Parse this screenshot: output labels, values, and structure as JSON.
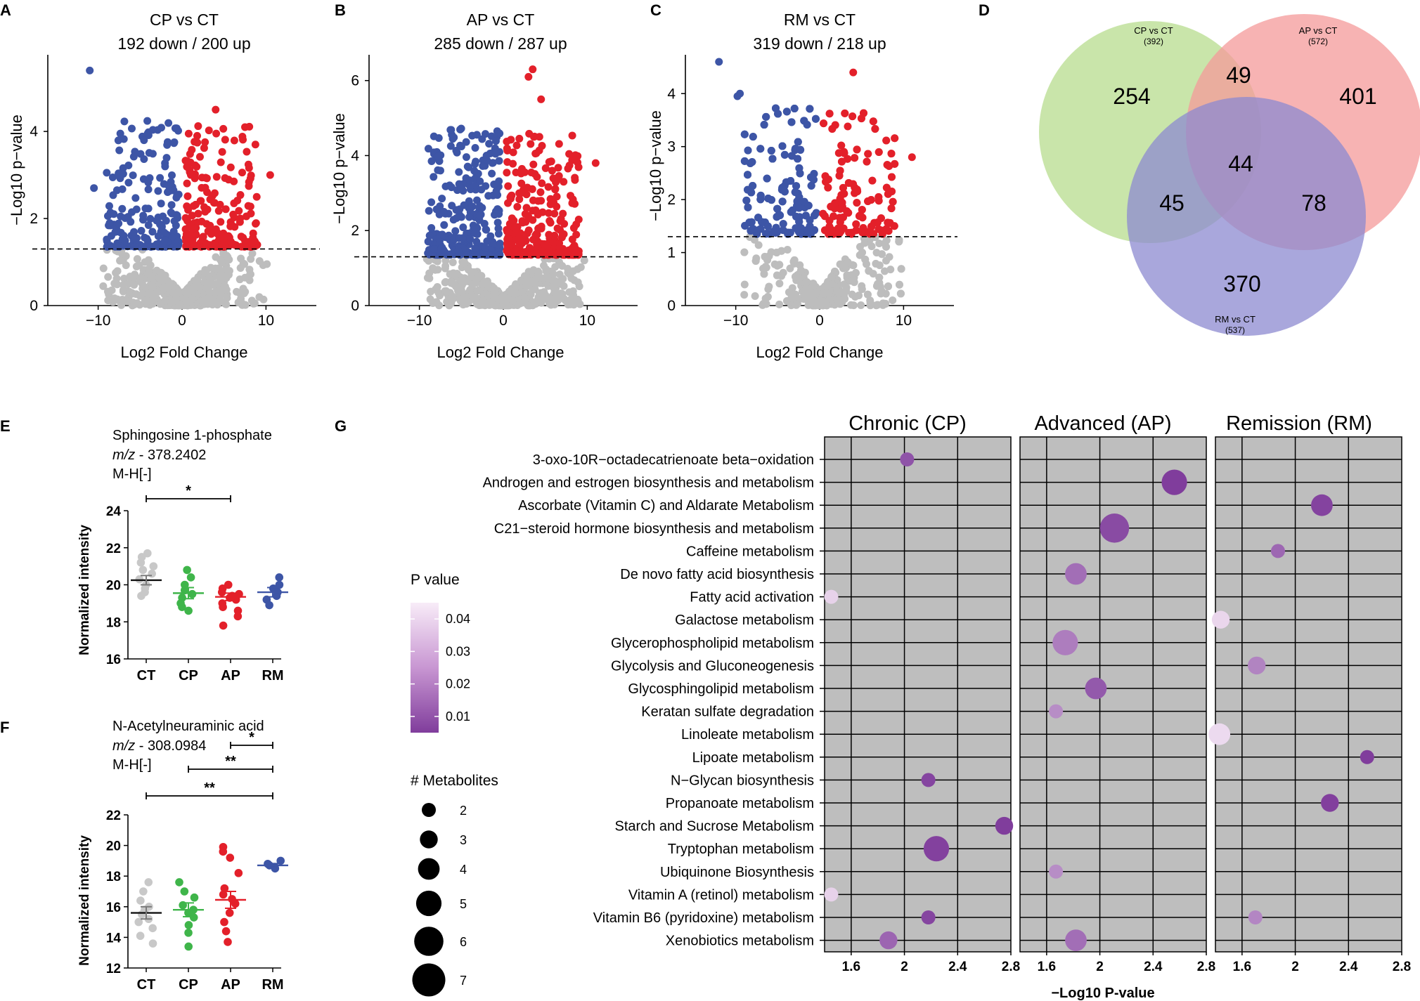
{
  "panel_letters": {
    "A": "A",
    "B": "B",
    "C": "C",
    "D": "D",
    "E": "E",
    "F": "F",
    "G": "G"
  },
  "colors": {
    "down": "#3d55a6",
    "up": "#e3202a",
    "ns": "#bdbdbd",
    "ct": "#c8c8c8",
    "cp": "#3fb54a",
    "ap": "#e3202a",
    "rm": "#3d55a6",
    "grid_bg": "#bebebe",
    "venn_cp": "#b7dc8e",
    "venn_ap": "#f49a9a",
    "venn_rm": "#8c8ad0"
  },
  "chart_data": [
    {
      "type": "scatter",
      "panel": "A",
      "title": "CP vs CT",
      "subtitle": "192 down / 200 up",
      "xlabel": "Log2 Fold Change",
      "ylabel": "−Log10 p−value",
      "xlim": [
        -16,
        16
      ],
      "ylim": [
        0,
        5.6
      ],
      "xticks": [
        -10,
        0,
        10
      ],
      "xtick_labels": [
        "−10",
        "0",
        "10"
      ],
      "yticks": [
        0,
        2,
        4
      ],
      "threshold": 1.3,
      "down_count": 192,
      "up_count": 200,
      "highlights": [
        {
          "x": -11,
          "y": 5.4,
          "group": "down"
        },
        {
          "x": 4,
          "y": 4.5,
          "group": "up"
        },
        {
          "x": 1.8,
          "y": 3.9,
          "group": "up"
        },
        {
          "x": 7.5,
          "y": 4.1,
          "group": "up"
        },
        {
          "x": 10.5,
          "y": 3.0,
          "group": "up"
        },
        {
          "x": -7.5,
          "y": 3.0,
          "group": "down"
        },
        {
          "x": -10.5,
          "y": 2.7,
          "group": "down"
        }
      ]
    },
    {
      "type": "scatter",
      "panel": "B",
      "title": "AP vs CT",
      "subtitle": "285 down / 287 up",
      "xlabel": "Log2 Fold Change",
      "ylabel": "−Log10 p−value",
      "xlim": [
        -16,
        16
      ],
      "ylim": [
        0,
        6.5
      ],
      "xticks": [
        -10,
        0,
        10
      ],
      "xtick_labels": [
        "−10",
        "0",
        "10"
      ],
      "yticks": [
        0,
        2,
        4,
        6
      ],
      "threshold": 1.3,
      "down_count": 285,
      "up_count": 287,
      "highlights": [
        {
          "x": 3.5,
          "y": 6.3,
          "group": "up"
        },
        {
          "x": 3,
          "y": 6.1,
          "group": "up"
        },
        {
          "x": 4.5,
          "y": 5.5,
          "group": "up"
        },
        {
          "x": 4.3,
          "y": 4.5,
          "group": "up"
        },
        {
          "x": 11,
          "y": 3.8,
          "group": "up"
        },
        {
          "x": -7.5,
          "y": 3.6,
          "group": "down"
        },
        {
          "x": -2,
          "y": 4.0,
          "group": "down"
        }
      ]
    },
    {
      "type": "scatter",
      "panel": "C",
      "title": "RM vs CT",
      "subtitle": "319 down / 218 up",
      "xlabel": "Log2 Fold Change",
      "ylabel": "−Log10 p−value",
      "xlim": [
        -16,
        16
      ],
      "ylim": [
        0,
        4.6
      ],
      "xticks": [
        -10,
        0,
        10
      ],
      "xtick_labels": [
        "−10",
        "0",
        "10"
      ],
      "yticks": [
        0,
        1,
        2,
        3,
        4
      ],
      "threshold": 1.3,
      "down_count": 319,
      "up_count": 218,
      "highlights": [
        {
          "x": -12,
          "y": 4.6,
          "group": "down"
        },
        {
          "x": -9.5,
          "y": 4.0,
          "group": "down"
        },
        {
          "x": -9.8,
          "y": 3.95,
          "group": "down"
        },
        {
          "x": 4,
          "y": 4.4,
          "group": "up"
        },
        {
          "x": 11,
          "y": 2.8,
          "group": "up"
        }
      ]
    },
    {
      "type": "venn",
      "panel": "D",
      "sets": [
        {
          "label": "CP vs CT",
          "count_label": "(392)",
          "total": 392
        },
        {
          "label": "AP vs CT",
          "count_label": "(572)",
          "total": 572
        },
        {
          "label": "RM vs CT",
          "count_label": "(537)",
          "total": 537
        }
      ],
      "regions": {
        "cp_only": 254,
        "ap_only": 401,
        "rm_only": 370,
        "cp_ap": 49,
        "cp_rm": 45,
        "ap_rm": 78,
        "all": 44
      }
    },
    {
      "type": "dot",
      "panel": "E",
      "title": "Sphingosine 1-phosphate",
      "mz_label": "m/z",
      "mz_value": " - 378.2402",
      "adduct": "M-H[-]",
      "ylabel": "Normalized intensity",
      "ylim": [
        16,
        24
      ],
      "yticks": [
        16,
        18,
        20,
        22,
        24
      ],
      "categories": [
        "CT",
        "CP",
        "AP",
        "RM"
      ],
      "means": [
        20.25,
        19.55,
        19.35,
        19.6
      ],
      "sem": [
        0.25,
        0.3,
        0.2,
        0.25
      ],
      "points": [
        [
          21.7,
          21.5,
          21.0,
          20.8,
          20.6,
          20.3,
          20.0,
          19.8,
          19.6,
          19.4,
          21.2
        ],
        [
          20.8,
          20.4,
          20.0,
          19.7,
          19.5,
          19.3,
          19.0,
          18.8,
          18.6
        ],
        [
          20.0,
          19.8,
          19.6,
          19.5,
          19.3,
          19.2,
          19.0,
          18.8,
          18.6,
          18.3,
          17.8,
          19.4
        ],
        [
          20.4,
          20.0,
          19.8,
          19.6,
          19.4,
          19.2,
          18.9
        ]
      ],
      "significance": [
        {
          "from": 0,
          "to": 2,
          "label": "*"
        }
      ]
    },
    {
      "type": "dot",
      "panel": "F",
      "title": "N-Acetylneuraminic acid",
      "mz_label": "m/z",
      "mz_value": " - 308.0984",
      "adduct": "M-H[-]",
      "ylabel": "Normalized intensity",
      "ylim": [
        12,
        22
      ],
      "yticks": [
        12,
        14,
        16,
        18,
        20,
        22
      ],
      "categories": [
        "CT",
        "CP",
        "AP",
        "RM"
      ],
      "means": [
        15.6,
        15.8,
        16.45,
        18.7
      ],
      "sem": [
        0.4,
        0.45,
        0.55,
        0.12
      ],
      "points": [
        [
          17.6,
          17.0,
          16.4,
          16.0,
          15.8,
          15.5,
          15.2,
          15.0,
          14.6,
          14.1,
          13.6
        ],
        [
          17.6,
          17.0,
          16.6,
          16.1,
          15.8,
          15.6,
          15.3,
          14.8,
          14.3,
          13.4
        ],
        [
          19.9,
          19.6,
          19.2,
          18.2,
          17.2,
          16.8,
          16.5,
          16.2,
          15.6,
          15.0,
          14.4,
          13.7
        ],
        [
          19.0,
          18.8,
          18.7,
          18.6,
          18.5
        ]
      ],
      "significance": [
        {
          "from": 0,
          "to": 3,
          "label": "**"
        },
        {
          "from": 1,
          "to": 3,
          "label": "**"
        },
        {
          "from": 2,
          "to": 3,
          "label": "*"
        }
      ]
    },
    {
      "type": "bubble",
      "panel": "G",
      "panels": [
        "Chronic (CP)",
        "Advanced (AP)",
        "Remission (RM)"
      ],
      "xlabel": "−Log10 P-value",
      "xlim": [
        1.4,
        2.8
      ],
      "xticks": [
        1.6,
        2.0,
        2.4,
        2.8
      ],
      "pathways": [
        "3-oxo-10R−octadecatrienoate beta−oxidation",
        "Androgen and estrogen biosynthesis and metabolism",
        "Ascorbate (Vitamin C) and Aldarate Metabolism",
        "C21−steroid hormone biosynthesis and metabolism",
        "Caffeine metabolism",
        "De novo fatty acid biosynthesis",
        "Fatty acid activation",
        "Galactose metabolism",
        "Glycerophospholipid metabolism",
        "Glycolysis and Gluconeogenesis",
        "Glycosphingolipid metabolism",
        "Keratan sulfate degradation",
        "Linoleate metabolism",
        "Lipoate metabolism",
        "N−Glycan biosynthesis",
        "Propanoate metabolism",
        "Starch and Sucrose Metabolism",
        "Tryptophan metabolism",
        "Ubiquinone Biosynthesis",
        "Vitamin A (retinol) metabolism",
        "Vitamin B6 (pyridoxine) metabolism",
        "Xenobiotics metabolism"
      ],
      "points": [
        {
          "panel": 0,
          "pathway": 0,
          "x": 2.02,
          "p": 0.0095,
          "n": 2
        },
        {
          "panel": 0,
          "pathway": 6,
          "x": 1.45,
          "p": 0.0355,
          "n": 2
        },
        {
          "panel": 0,
          "pathway": 14,
          "x": 2.18,
          "p": 0.0066,
          "n": 2
        },
        {
          "panel": 0,
          "pathway": 16,
          "x": 2.75,
          "p": 0.0018,
          "n": 3
        },
        {
          "panel": 0,
          "pathway": 17,
          "x": 2.24,
          "p": 0.0058,
          "n": 5
        },
        {
          "panel": 0,
          "pathway": 19,
          "x": 1.45,
          "p": 0.0355,
          "n": 2
        },
        {
          "panel": 0,
          "pathway": 20,
          "x": 2.18,
          "p": 0.0066,
          "n": 2
        },
        {
          "panel": 0,
          "pathway": 21,
          "x": 1.88,
          "p": 0.0132,
          "n": 3
        },
        {
          "panel": 1,
          "pathway": 1,
          "x": 2.56,
          "p": 0.0028,
          "n": 5
        },
        {
          "panel": 1,
          "pathway": 3,
          "x": 2.11,
          "p": 0.0078,
          "n": 6
        },
        {
          "panel": 1,
          "pathway": 5,
          "x": 1.82,
          "p": 0.0151,
          "n": 4
        },
        {
          "panel": 1,
          "pathway": 8,
          "x": 1.74,
          "p": 0.0182,
          "n": 5
        },
        {
          "panel": 1,
          "pathway": 10,
          "x": 1.97,
          "p": 0.0107,
          "n": 4
        },
        {
          "panel": 1,
          "pathway": 11,
          "x": 1.67,
          "p": 0.0214,
          "n": 2
        },
        {
          "panel": 1,
          "pathway": 18,
          "x": 1.67,
          "p": 0.0214,
          "n": 2
        },
        {
          "panel": 1,
          "pathway": 21,
          "x": 1.82,
          "p": 0.0151,
          "n": 4
        },
        {
          "panel": 2,
          "pathway": 2,
          "x": 2.2,
          "p": 0.0063,
          "n": 4
        },
        {
          "panel": 2,
          "pathway": 4,
          "x": 1.87,
          "p": 0.0135,
          "n": 2
        },
        {
          "panel": 2,
          "pathway": 7,
          "x": 1.44,
          "p": 0.0363,
          "n": 3
        },
        {
          "panel": 2,
          "pathway": 9,
          "x": 1.71,
          "p": 0.0195,
          "n": 3
        },
        {
          "panel": 2,
          "pathway": 12,
          "x": 1.43,
          "p": 0.0371,
          "n": 4
        },
        {
          "panel": 2,
          "pathway": 13,
          "x": 2.54,
          "p": 0.0029,
          "n": 2
        },
        {
          "panel": 2,
          "pathway": 15,
          "x": 2.26,
          "p": 0.0055,
          "n": 3
        },
        {
          "panel": 2,
          "pathway": 20,
          "x": 1.7,
          "p": 0.02,
          "n": 2
        }
      ],
      "legend": {
        "color_title": "P value",
        "color_ticks": [
          "0.04",
          "0.03",
          "0.02",
          "0.01"
        ],
        "color_tick_values": [
          0.04,
          0.03,
          0.02,
          0.01
        ],
        "size_title": "# Metabolites",
        "sizes": [
          "2",
          "3",
          "4",
          "5",
          "6",
          "7"
        ],
        "size_values": [
          2,
          3,
          4,
          5,
          6,
          7
        ]
      }
    }
  ]
}
